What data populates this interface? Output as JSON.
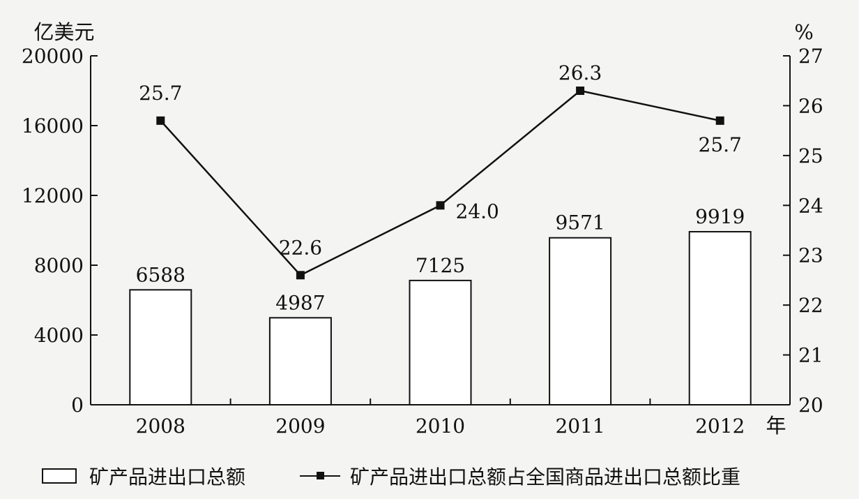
{
  "chart_data": {
    "type": "bar",
    "categories": [
      "2008",
      "2009",
      "2010",
      "2011",
      "2012"
    ],
    "xlabel": "年",
    "left_axis": {
      "label": "亿美元",
      "ticks": [
        "0",
        "4000",
        "8000",
        "12000",
        "16000",
        "20000"
      ],
      "range": [
        0,
        20000
      ]
    },
    "right_axis": {
      "label": "%",
      "ticks": [
        "20",
        "21",
        "22",
        "23",
        "24",
        "25",
        "26",
        "27"
      ],
      "range": [
        20,
        27
      ]
    },
    "series": [
      {
        "name": "矿产品进出口总额",
        "type": "bar",
        "axis": "left",
        "values": [
          6588,
          4987,
          7125,
          9571,
          9919
        ],
        "labels": [
          "6588",
          "4987",
          "7125",
          "9571",
          "9919"
        ]
      },
      {
        "name": "矿产品进出口总额占全国商品进出口总额比重",
        "type": "line",
        "axis": "right",
        "values": [
          25.7,
          22.6,
          24.0,
          26.3,
          25.7
        ],
        "labels": [
          "25.7",
          "22.6",
          "24.0",
          "26.3",
          "25.7"
        ]
      }
    ],
    "grid": false,
    "legend_position": "bottom",
    "colors": {
      "bar_fill": "#ffffff",
      "ink": "#111111"
    }
  }
}
